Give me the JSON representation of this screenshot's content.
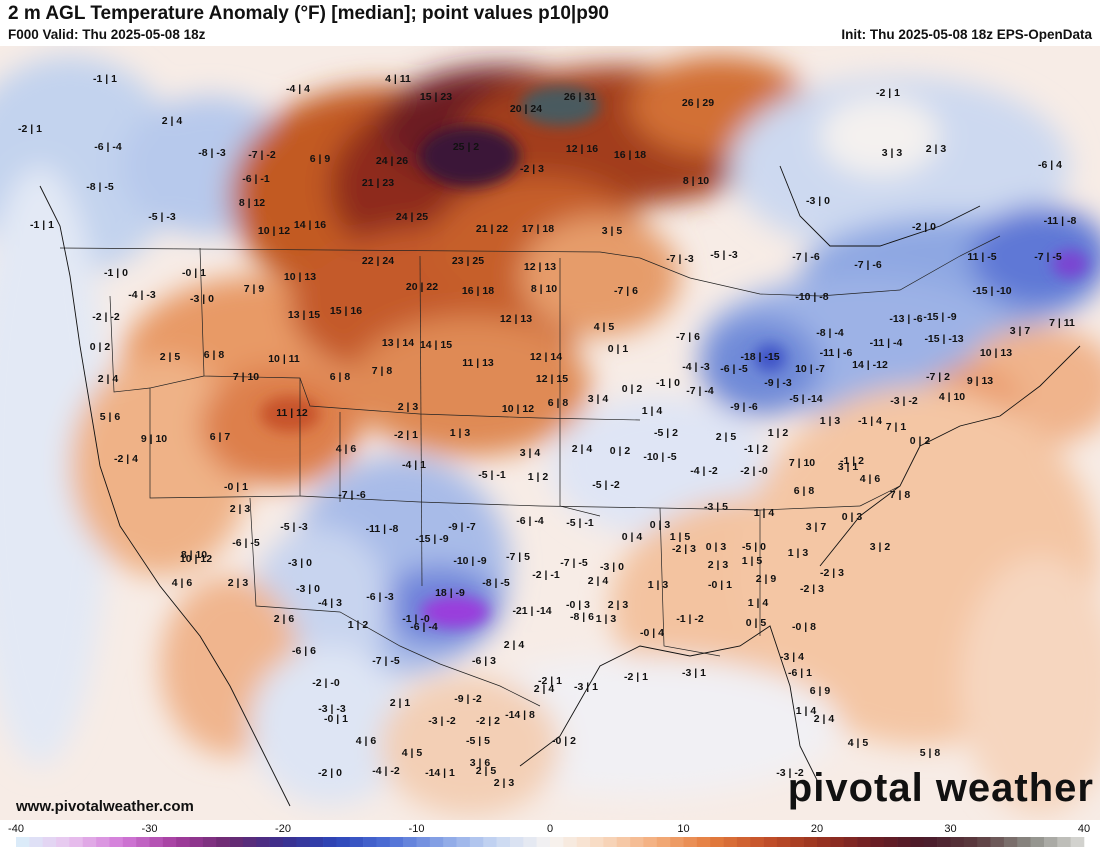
{
  "header": {
    "title": "2 m AGL Temperature Anomaly (°F) [median]; point values p10|p90",
    "valid": "F000 Valid: Thu 2025-05-08 18z",
    "init": "Init: Thu 2025-05-08 18z EPS-OpenData"
  },
  "footer": {
    "website": "www.pivotalweather.com",
    "brand": "pivotal weather"
  },
  "colorbar": {
    "min": -40,
    "max": 40,
    "ticks": [
      "-40",
      "-30",
      "-20",
      "-10",
      "0",
      "10",
      "20",
      "30",
      "40"
    ]
  },
  "colors": {
    "strong_warm": "#6a1c1c",
    "warm": "#b4491c",
    "mild_warm": "#f0a874",
    "neutral": "#f6f0ea",
    "mild_cold": "#bcd0ee",
    "cold": "#4a64d0",
    "strong_cold": "#8a3ad8"
  },
  "points": [
    "-1|1",
    "-4|4",
    "4|11",
    "15|23",
    "26|31",
    "20|24",
    "26|29",
    "-2|1",
    "-2|1",
    "2|4",
    "-6|-4",
    "-8|-3",
    "-7|-2",
    "6|9",
    "25|2",
    "12|16",
    "16|18",
    "3|3",
    "2|3",
    "-6|4",
    "-8|-5",
    "-6|-1",
    "24|26",
    "-2|3",
    "21|23",
    "8|10",
    "-3|0",
    "8|12",
    "-5|-3",
    "-1|1",
    "10|12",
    "14|16",
    "24|25",
    "21|22",
    "17|18",
    "3|5",
    "-2|0",
    "-11|-8",
    "-1|0",
    "-0|1",
    "22|24",
    "23|25",
    "12|13",
    "-7|-3",
    "-5|-3",
    "-7|-6",
    "-7|-6",
    "11|-5",
    "-7|-5",
    "-4|-3",
    "-3|0",
    "7|9",
    "10|13",
    "20|22",
    "16|18",
    "8|10",
    "-7|6",
    "-10|-8",
    "-15|-10",
    "-2|-2",
    "13|15",
    "15|16",
    "12|13",
    "4|5",
    "-13|-6",
    "-15|-9",
    "3|7",
    "7|11",
    "0|2",
    "2|5",
    "6|8",
    "13|14",
    "14|15",
    "0|1",
    "-7|6",
    "-8|-4",
    "-11|-4",
    "-15|-13",
    "10|13",
    "10|11",
    "11|13",
    "12|14",
    "-18|-15",
    "-11|-6",
    "2|4",
    "7|10",
    "6|8",
    "7|8",
    "12|15",
    "0|2",
    "-1|0",
    "-4|-3",
    "-6|-5",
    "10|-7",
    "14|-12",
    "-7|2",
    "9|13",
    "5|6",
    "11|12",
    "2|3",
    "3|4",
    "10|12",
    "6|8",
    "1|4",
    "-7|-4",
    "-9|-6",
    "-9|-3",
    "-5|-14",
    "-3|-2",
    "4|10",
    "9|10",
    "6|7",
    "-2|1",
    "1|3",
    "-5|2",
    "2|5",
    "1|2",
    "1|3",
    "-1|4",
    "7|1",
    "0|2",
    "4|6",
    "3|4",
    "2|4",
    "0|2",
    "-1|2",
    "-10|-5",
    "-2|4",
    "-4|1",
    "-1|2",
    "-4|-2",
    "-2|-0",
    "-5|-1",
    "7|10",
    "3|1",
    "-0|1",
    "1|2",
    "-5|-2",
    "4|6",
    "-7|-6",
    "7|8",
    "2|3",
    "-6|-4",
    "-5|-1",
    "-3|5",
    "1|4",
    "6|8",
    "0|3",
    "-5|-3",
    "-11|-8",
    "-9|-7",
    "0|3",
    "0|4",
    "3|7",
    "8|10",
    "1|5",
    "-6|-5",
    "-15|-9",
    "10|12",
    "-3|0",
    "-7|5",
    "-10|-9",
    "-7|-5",
    "-3|0",
    "2|3",
    "1|3",
    "0|3",
    "1|5",
    "-2|3",
    "-5|0",
    "3|2",
    "-2|3",
    "4|6",
    "2|3",
    "-3|0",
    "-8|-5",
    "-2|-1",
    "2|4",
    "1|3",
    "2|9",
    "-2|3",
    "-6|-3",
    "-4|3",
    "18|-9",
    "-0|3",
    "2|3",
    "-0|1",
    "1|4",
    "2|6",
    "1|2",
    "-6|-4",
    "-21|-14",
    "-8|6",
    "1|3",
    "-1|-2",
    "0|5",
    "-0|8",
    "-6|6",
    "-1|-0",
    "2|4",
    "-0|4",
    "-7|-5",
    "-6|3",
    "-3|4",
    "-2|1",
    "-3|1",
    "-2|1",
    "-3|1",
    "6|9",
    "-6|1",
    "-2|-0",
    "-9|-2",
    "-3|-3",
    "-0|1",
    "2|1",
    "1|4",
    "2|4",
    "-3|-2",
    "-2|2",
    "-14|8",
    "2|4",
    "4|6",
    "-5|5",
    "-0|2",
    "2|3",
    "4|5",
    "-14|1",
    "3|6",
    "-4|-2",
    "4|5",
    "2|5",
    "-2|0",
    "-3|-2",
    "5|8"
  ]
}
